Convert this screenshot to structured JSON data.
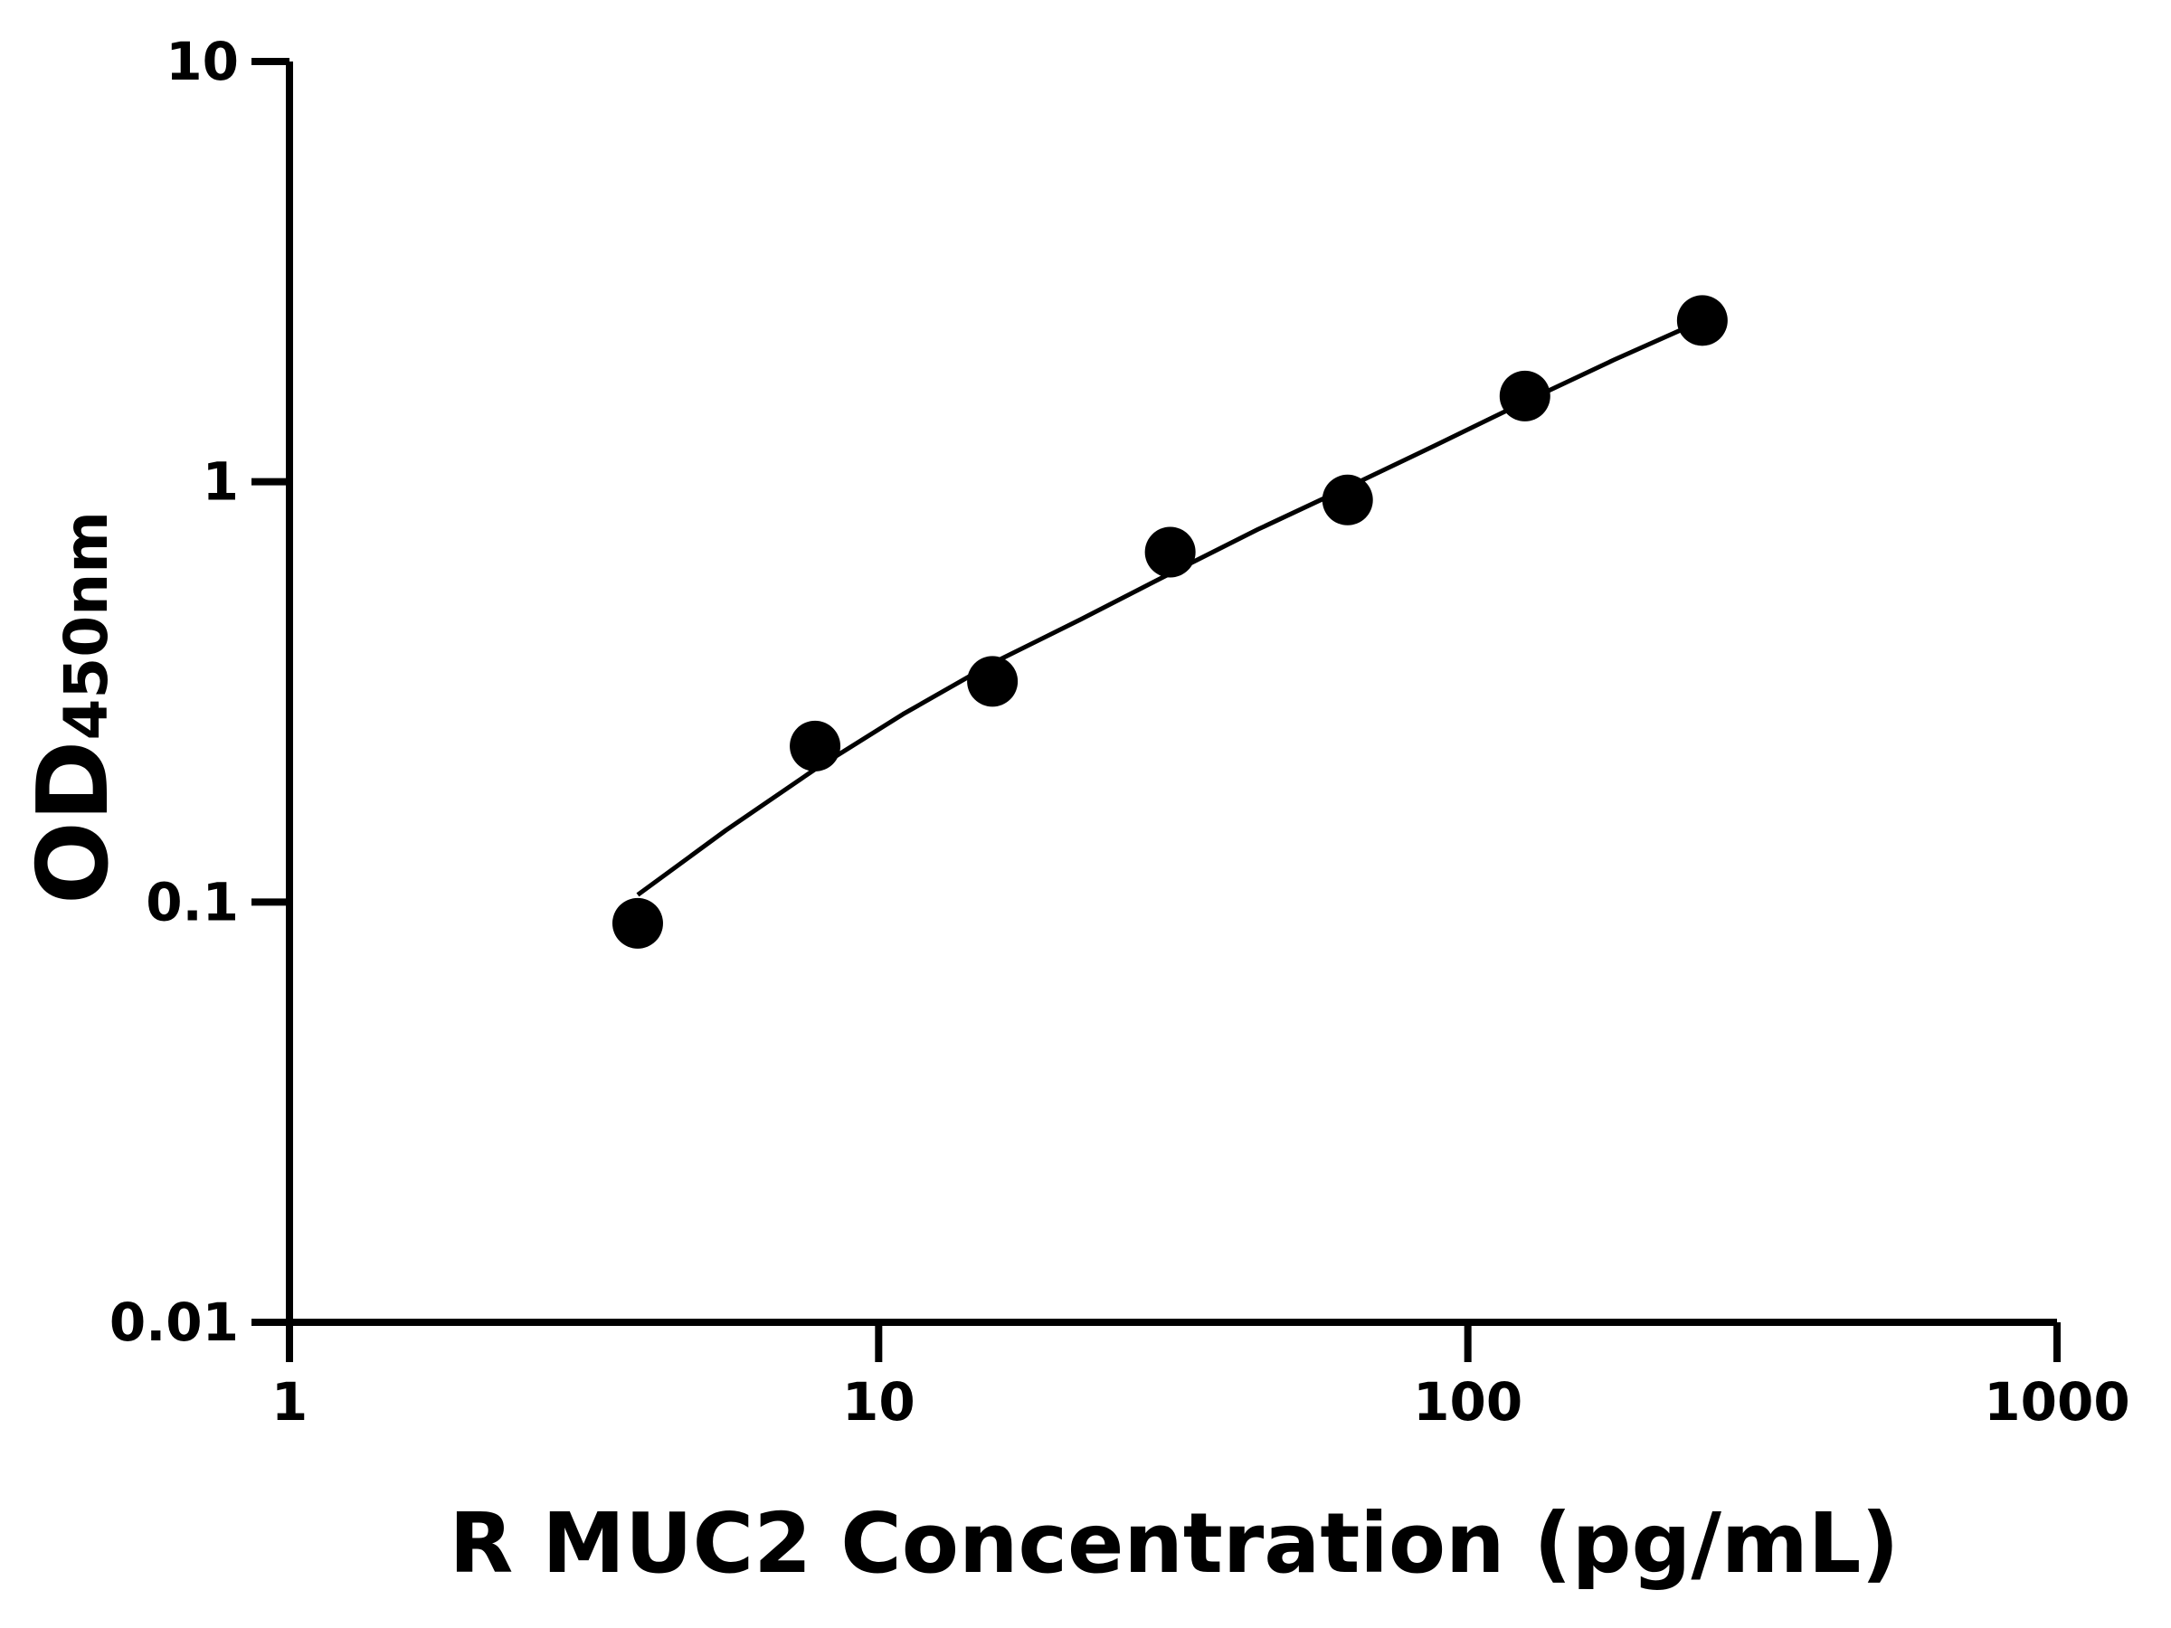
{
  "chart_data": {
    "type": "scatter",
    "xlabel": "R MUC2 Concentration (pg/mL)",
    "ylabel": {
      "main": "OD",
      "sub": "450nm"
    },
    "xscale": "log",
    "yscale": "log",
    "xlim": [
      1,
      1000
    ],
    "ylim": [
      0.01,
      10
    ],
    "xticks": [
      1,
      10,
      100,
      1000
    ],
    "xtick_labels": [
      "1",
      "10",
      "100",
      "1000"
    ],
    "yticks": [
      0.01,
      0.1,
      1,
      10
    ],
    "ytick_labels": [
      "0.01",
      "0.1",
      "1",
      "10"
    ],
    "grid": false,
    "colors": {
      "points": "#000000",
      "curve": "#000000",
      "axes": "#000000"
    },
    "series": [
      {
        "points": [
          {
            "x": 3.9,
            "y": 0.089
          },
          {
            "x": 7.8,
            "y": 0.235
          },
          {
            "x": 15.6,
            "y": 0.335
          },
          {
            "x": 31.25,
            "y": 0.68
          },
          {
            "x": 62.5,
            "y": 0.905
          },
          {
            "x": 125,
            "y": 1.6
          },
          {
            "x": 250,
            "y": 2.42
          }
        ]
      }
    ],
    "fit_curve": {
      "points": [
        {
          "x": 3.9,
          "y": 0.104
        },
        {
          "x": 5.5,
          "y": 0.148
        },
        {
          "x": 7.8,
          "y": 0.207
        },
        {
          "x": 11,
          "y": 0.28
        },
        {
          "x": 15.6,
          "y": 0.37
        },
        {
          "x": 22,
          "y": 0.47
        },
        {
          "x": 31.25,
          "y": 0.605
        },
        {
          "x": 44,
          "y": 0.77
        },
        {
          "x": 62.5,
          "y": 0.97
        },
        {
          "x": 88,
          "y": 1.22
        },
        {
          "x": 125,
          "y": 1.55
        },
        {
          "x": 177,
          "y": 1.95
        },
        {
          "x": 250,
          "y": 2.42
        }
      ]
    }
  }
}
